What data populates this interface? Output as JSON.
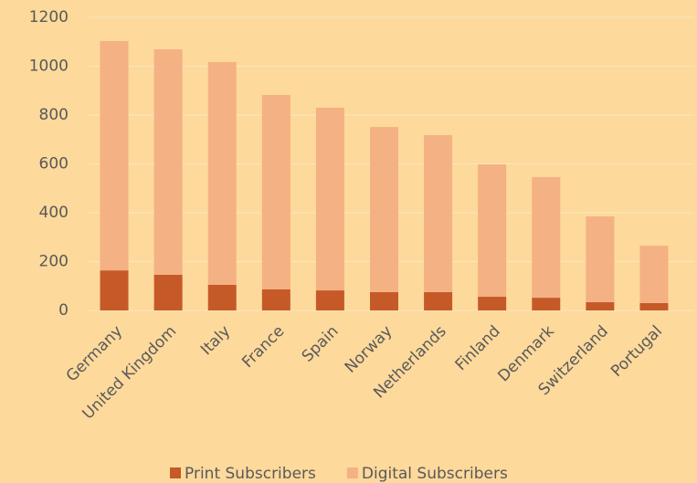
{
  "chart_data": {
    "type": "stacked_bar",
    "categories": [
      "Germany",
      "United Kingdom",
      "Italy",
      "France",
      "Spain",
      "Norway",
      "Netherlands",
      "Finland",
      "Denmark",
      "Switzerland",
      "Portugal"
    ],
    "series": [
      {
        "name": "Print Subscribers",
        "color": "#c55a28",
        "values": [
          164,
          146,
          105,
          86,
          82,
          75,
          75,
          56,
          52,
          34,
          30
        ]
      },
      {
        "name": "Digital Subscribers",
        "color": "#f4b183",
        "values": [
          939,
          923,
          912,
          796,
          748,
          676,
          643,
          542,
          494,
          351,
          235
        ]
      }
    ],
    "ylim": [
      0,
      1200
    ],
    "yticks": [
      0,
      200,
      400,
      600,
      800,
      1000,
      1200
    ],
    "grid": true,
    "legend": "bottom"
  }
}
